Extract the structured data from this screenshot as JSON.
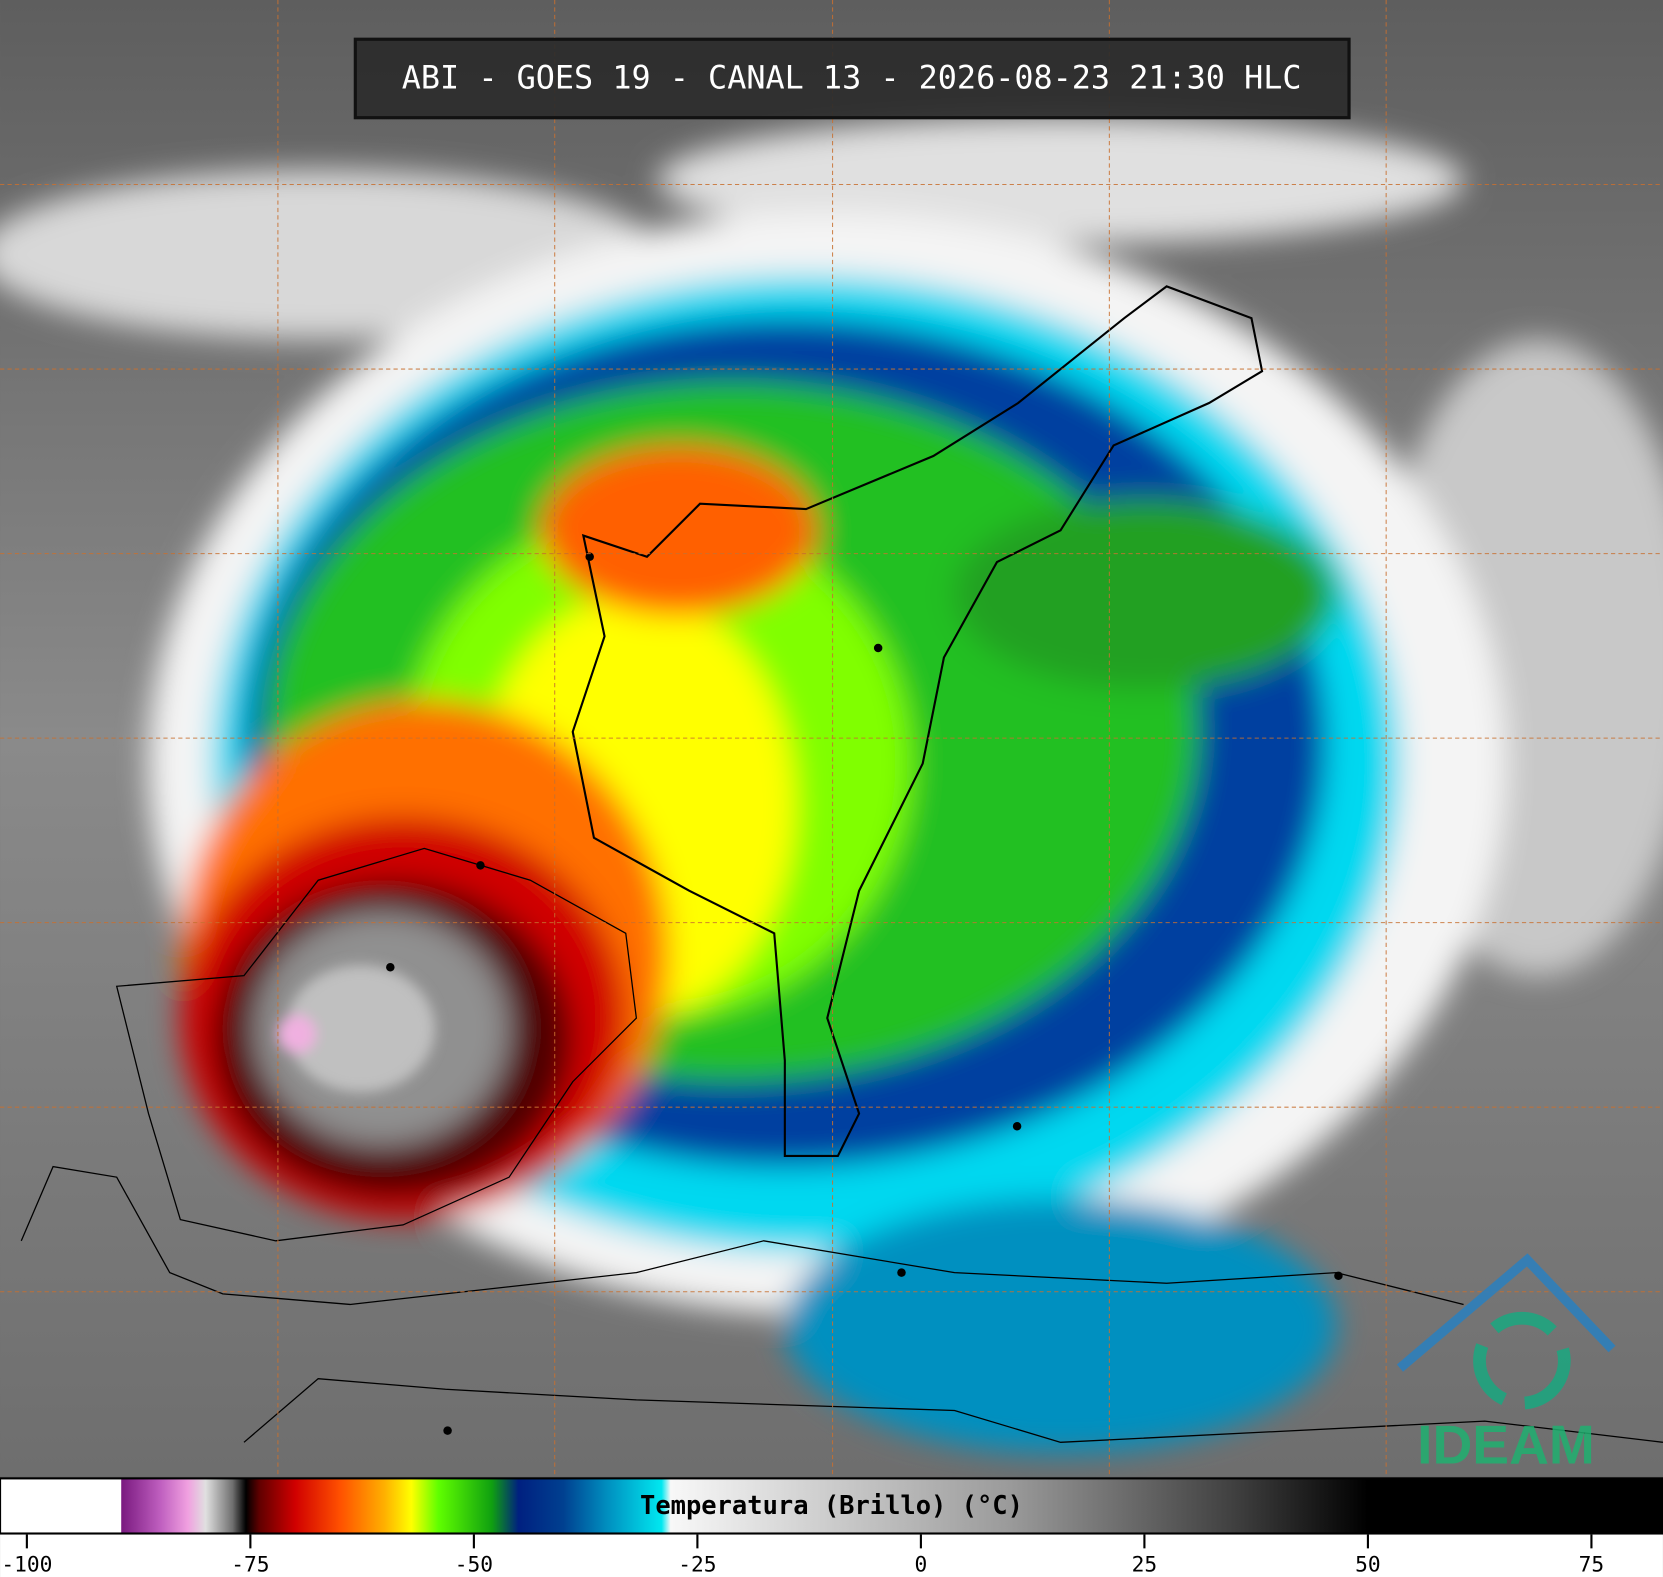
{
  "title": "ABI - GOES 19 - CANAL 13 - 2026-08-23 21:30 HLC",
  "logo": "IDEAM",
  "colorbar": {
    "label": "Temperatura (Brillo) (°C)",
    "lim": [
      -103,
      83
    ],
    "ticks": [
      -100,
      -75,
      -50,
      -25,
      0,
      25,
      50,
      75
    ],
    "stops": [
      {
        "value": -103,
        "color": "#ffffff"
      },
      {
        "value": -89.5,
        "color": "#ffffff"
      },
      {
        "value": -89.4,
        "color": "#7a1a80"
      },
      {
        "value": -85,
        "color": "#c060c0"
      },
      {
        "value": -82,
        "color": "#f0a0e0"
      },
      {
        "value": -80,
        "color": "#e0e0e0"
      },
      {
        "value": -77,
        "color": "#707070"
      },
      {
        "value": -75.5,
        "color": "#000000"
      },
      {
        "value": -74,
        "color": "#600000"
      },
      {
        "value": -70,
        "color": "#d00000"
      },
      {
        "value": -65,
        "color": "#ff5000"
      },
      {
        "value": -60,
        "color": "#ffb000"
      },
      {
        "value": -57,
        "color": "#ffff00"
      },
      {
        "value": -54,
        "color": "#60ff00"
      },
      {
        "value": -48,
        "color": "#10a010"
      },
      {
        "value": -45,
        "color": "#002080"
      },
      {
        "value": -40,
        "color": "#004090"
      },
      {
        "value": -35,
        "color": "#0090c0"
      },
      {
        "value": -29,
        "color": "#00e8f0"
      },
      {
        "value": -28,
        "color": "#f8f8f8"
      },
      {
        "value": 10,
        "color": "#9a9a9a"
      },
      {
        "value": 35,
        "color": "#404040"
      },
      {
        "value": 50,
        "color": "#000000"
      },
      {
        "value": 83,
        "color": "#000000"
      }
    ]
  }
}
